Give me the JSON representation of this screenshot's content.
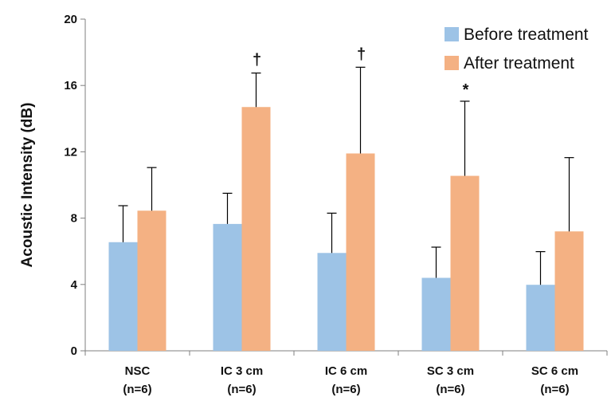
{
  "chart_data": {
    "type": "bar",
    "title": "",
    "xlabel": "",
    "ylabel": "Acoustic Intensity (dB)",
    "ylim": [
      0,
      20
    ],
    "yticks": [
      0,
      4,
      8,
      12,
      16,
      20
    ],
    "grid": false,
    "legend_position": "top-right",
    "categories": [
      [
        "NSC",
        "(n=6)"
      ],
      [
        "IC 3 cm",
        "(n=6)"
      ],
      [
        "IC 6 cm",
        "(n=6)"
      ],
      [
        "SC 3 cm",
        "(n=6)"
      ],
      [
        "SC 6 cm",
        "(n=6)"
      ]
    ],
    "series": [
      {
        "name": "Before treatment",
        "color": "#9dc3e6",
        "values": [
          6.55,
          7.65,
          5.9,
          4.4,
          3.98
        ],
        "errors": [
          2.2,
          1.85,
          2.4,
          1.85,
          2.0
        ]
      },
      {
        "name": "After treatment",
        "color": "#f4b183",
        "values": [
          8.45,
          14.7,
          11.9,
          10.55,
          7.2
        ],
        "errors": [
          2.6,
          2.05,
          5.2,
          4.5,
          4.45
        ]
      }
    ],
    "annotations": [
      "",
      "†",
      "†",
      "*",
      ""
    ]
  }
}
